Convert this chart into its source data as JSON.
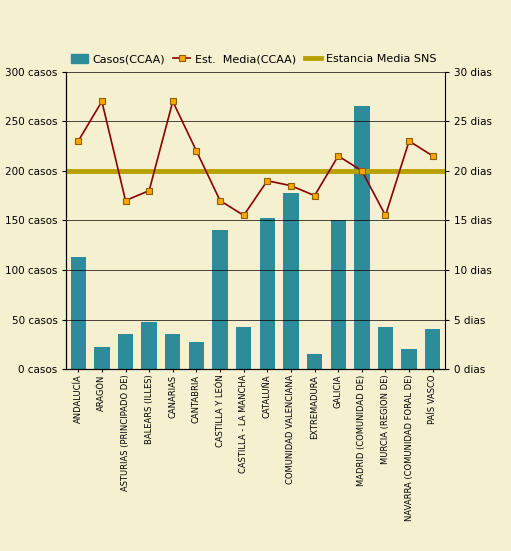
{
  "categories": [
    "ANDALUCÍA",
    "ARAGÓN",
    "ASTURIAS (PRINCIPADO DE)",
    "BALEARS (ILLES)",
    "CANARIAS",
    "CANTABRIA",
    "CASTILLA Y LEÓN",
    "CASTILLA - LA MANCHA",
    "CATALUÑA",
    "COMUNIDAD VALENCIANA",
    "EXTREMADURA",
    "GALICIA",
    "MADRID (COMUNIDAD DE)",
    "MURCIA (REGION DE)",
    "NAVARRA (COMUNIDAD FORAL DE)",
    "PAÍS VASCO"
  ],
  "bar_values": [
    113,
    22,
    35,
    48,
    35,
    27,
    140,
    43,
    152,
    178,
    15,
    150,
    265,
    43,
    20,
    40
  ],
  "line_values": [
    23,
    27,
    17,
    18,
    27,
    22,
    17,
    15.5,
    19,
    18.5,
    17.5,
    21.5,
    20,
    15.5,
    23,
    21.5
  ],
  "sns_line_value": 20,
  "bar_color": "#2e8b9a",
  "line_color": "#8b0000",
  "line_marker_color": "#ffa500",
  "line_marker_edge": "#8b6000",
  "sns_line_color": "#b8a000",
  "background_color": "#f5f0d0",
  "fig_background_color": "#f5f0d0",
  "ylim_left": [
    0,
    300
  ],
  "ylim_right": [
    0,
    30
  ],
  "yticks_left": [
    0,
    50,
    100,
    150,
    200,
    250,
    300
  ],
  "ytick_labels_left": [
    "0 casos",
    "50 casos",
    "100 casos",
    "150 casos",
    "200 casos",
    "250 casos",
    "300 casos"
  ],
  "yticks_right": [
    0,
    5,
    10,
    15,
    20,
    25,
    30
  ],
  "ytick_labels_right": [
    "0 dias",
    "5 dias",
    "10 dias",
    "15 dias",
    "20 dias",
    "25 dias",
    "30 dias"
  ],
  "legend_bar_label": "Casos(CCAA)",
  "legend_line_label": "Est.  Media(CCAA)",
  "legend_sns_label": "Estancia Media SNS",
  "tick_fontsize": 7.5,
  "legend_fontsize": 8.0,
  "xtick_fontsize": 6.0
}
